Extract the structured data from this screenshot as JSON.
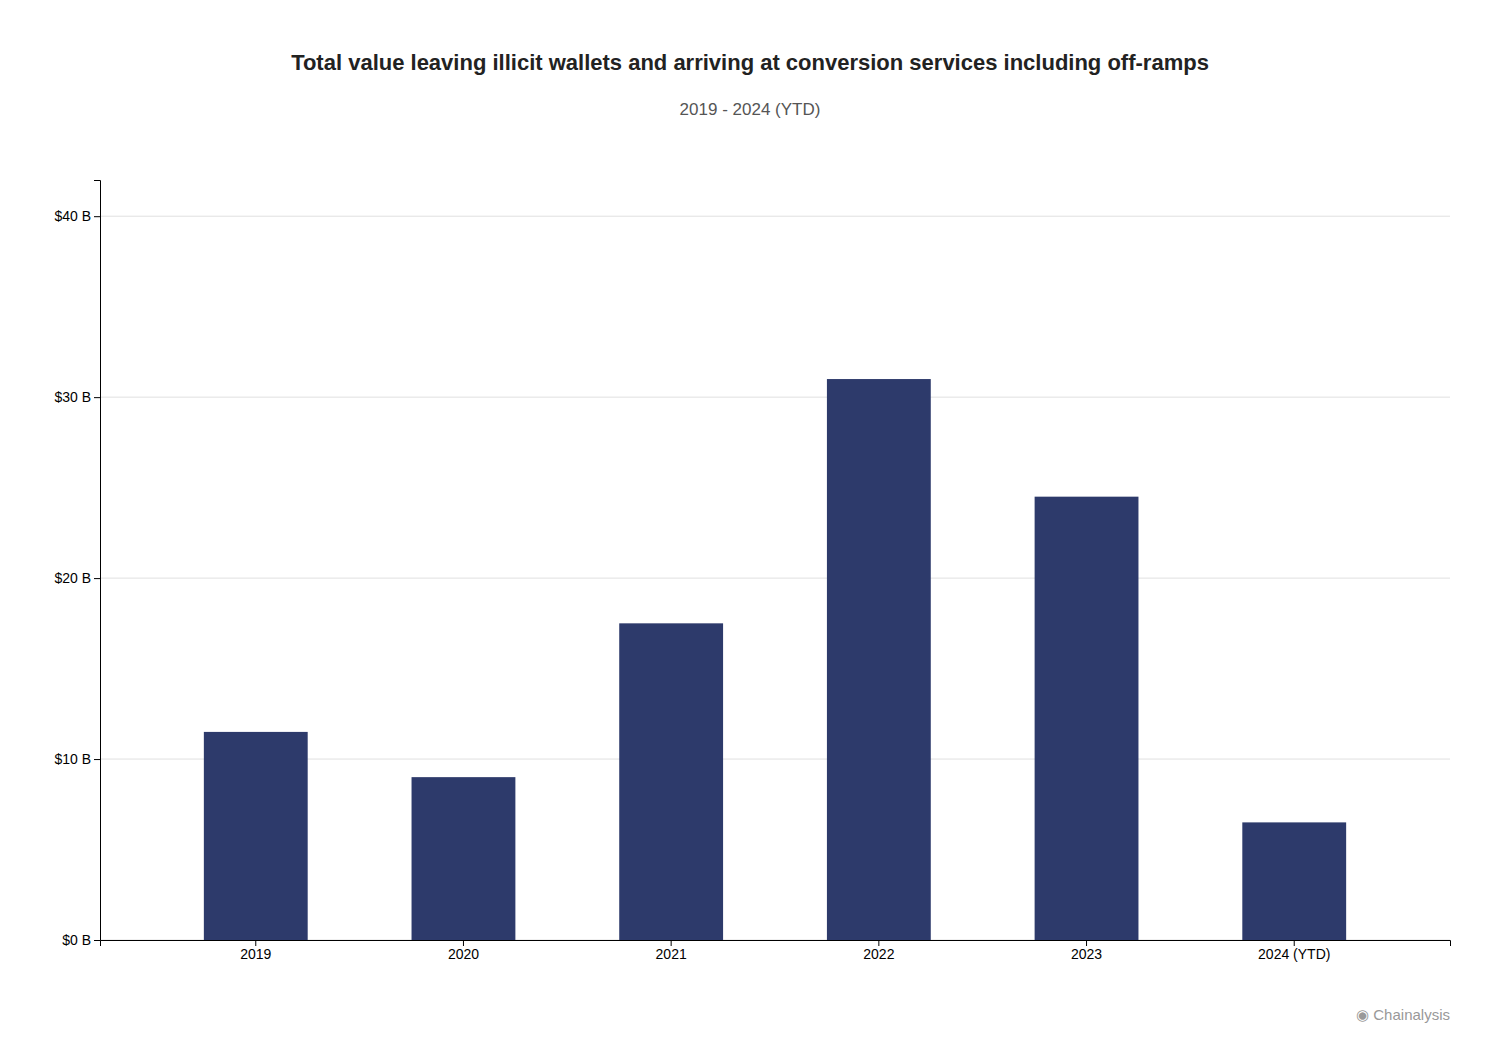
{
  "chart_data": {
    "type": "bar",
    "title": "Total value leaving illicit wallets and arriving at conversion services including off-ramps",
    "subtitle": "2019 - 2024 (YTD)",
    "categories": [
      "2019",
      "2020",
      "2021",
      "2022",
      "2023",
      "2024 (YTD)"
    ],
    "values": [
      11.5,
      9.0,
      17.5,
      31.0,
      24.5,
      6.5
    ],
    "color": "#2d3a6b",
    "ylim": [
      0,
      42
    ],
    "yticks": [
      {
        "value": 0,
        "label": "$0 B"
      },
      {
        "value": 10,
        "label": "$10 B"
      },
      {
        "value": 20,
        "label": "$20 B"
      },
      {
        "value": 30,
        "label": "$30 B"
      },
      {
        "value": 40,
        "label": "$40 B"
      }
    ],
    "grid": true,
    "annotations": [
      "◉ Chainalysis"
    ]
  }
}
